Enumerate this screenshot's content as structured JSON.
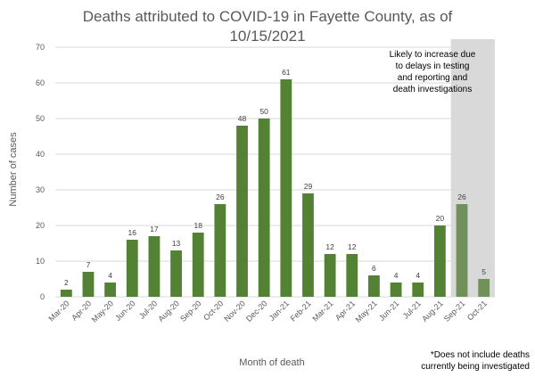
{
  "chart_data": {
    "type": "bar",
    "title_line1": "Deaths attributed to COVID-19 in Fayette County, as of",
    "title_line2": "10/15/2021",
    "xlabel": "Month of death",
    "ylabel": "Number of cases",
    "ylim": [
      0,
      70
    ],
    "ytick_step": 10,
    "grid": true,
    "categories": [
      "Mar-20",
      "Apr-20",
      "May-20",
      "Jun-20",
      "Jul-20",
      "Aug-20",
      "Sep-20",
      "Oct-20",
      "Nov-20",
      "Dec-20",
      "Jan-21",
      "Feb-21",
      "Mar-21",
      "Apr-21",
      "May-21",
      "Jun-21",
      "Jul-21",
      "Aug-21",
      "Sep-21",
      "Oct-21"
    ],
    "values": [
      2,
      7,
      4,
      16,
      17,
      13,
      18,
      26,
      48,
      50,
      61,
      29,
      12,
      12,
      6,
      4,
      4,
      20,
      26,
      5
    ],
    "highlight_from_index": 18,
    "colors": {
      "bar": "#548235",
      "bar_highlight": "#70925a",
      "shade": "#d9d9d9",
      "gridline": "#d9d9d9"
    },
    "annotation_lines": [
      "Likely to increase due",
      "to delays in testing",
      "and reporting and",
      "death investigations"
    ],
    "footnote_lines": [
      "*Does not include deaths",
      "currently being investigated"
    ]
  }
}
